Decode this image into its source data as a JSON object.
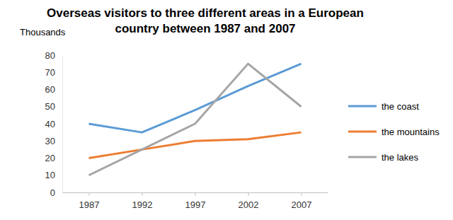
{
  "chart_data": {
    "type": "line",
    "title": "Overseas visitors to three different areas in a European country between 1987 and 2007",
    "y_label": "Thousands",
    "categories": [
      "1987",
      "1992",
      "1997",
      "2002",
      "2007"
    ],
    "series": [
      {
        "name": "the coast",
        "color": "#5b9bd5",
        "values": [
          40,
          35,
          48,
          62,
          75
        ]
      },
      {
        "name": "the mountains",
        "color": "#ed7d31",
        "values": [
          20,
          25,
          30,
          31,
          35
        ]
      },
      {
        "name": "the lakes",
        "color": "#a5a5a5",
        "values": [
          10,
          25,
          40,
          75,
          50
        ]
      }
    ],
    "ylim": [
      0,
      80
    ],
    "yticks": [
      0,
      10,
      20,
      30,
      40,
      50,
      60,
      70,
      80
    ],
    "grid": false,
    "legend": "right"
  }
}
